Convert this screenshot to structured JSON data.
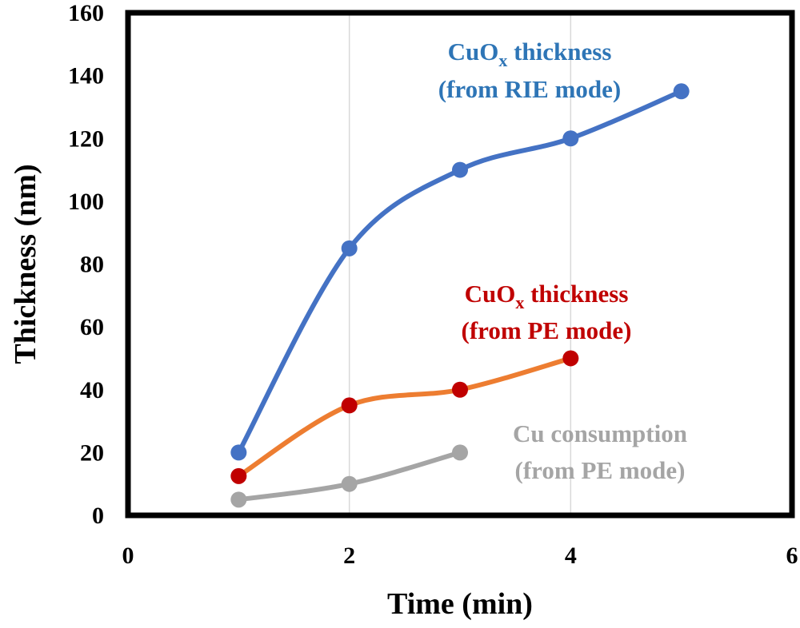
{
  "chart_data": {
    "type": "line",
    "title": "",
    "xlabel": "Time (min)",
    "ylabel": "Thickness (nm)",
    "xlim": [
      0,
      6
    ],
    "ylim": [
      0,
      160
    ],
    "x_ticks": [
      0,
      2,
      4,
      6
    ],
    "y_ticks": [
      0,
      20,
      40,
      60,
      80,
      100,
      120,
      140,
      160
    ],
    "grid": "vertical",
    "legend": "none",
    "series": [
      {
        "x": [
          1,
          2,
          3,
          4,
          5
        ],
        "y": [
          20,
          85,
          110,
          120,
          135
        ],
        "line_color": "#4472C4",
        "marker_color": "#4472C4",
        "annotation": [
          "CuO",
          "x",
          " thickness",
          "(from RIE mode)"
        ],
        "annotation_color": "#2E75B6"
      },
      {
        "x": [
          1,
          2,
          3,
          4
        ],
        "y": [
          12.5,
          35,
          40,
          50
        ],
        "line_color": "#ED7D31",
        "marker_color": "#C00000",
        "annotation": [
          "CuO",
          "x",
          " thickness",
          "(from PE mode)"
        ],
        "annotation_color": "#C00000"
      },
      {
        "x": [
          1,
          2,
          3
        ],
        "y": [
          5,
          10,
          20
        ],
        "line_color": "#A5A5A5",
        "marker_color": "#A5A5A5",
        "annotation": [
          "Cu consumption",
          "",
          "",
          "(from PE mode)"
        ],
        "annotation_color": "#A5A5A5"
      }
    ]
  }
}
